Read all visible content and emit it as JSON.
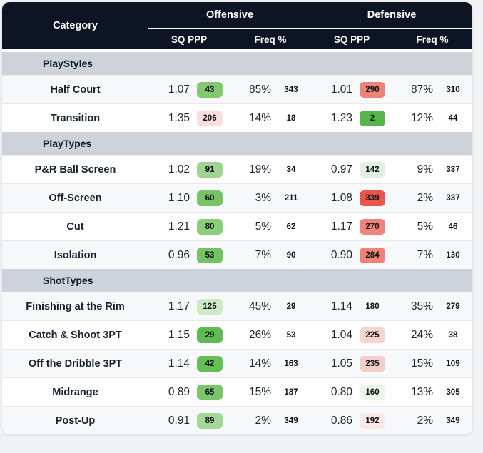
{
  "header": {
    "category": "Category",
    "groups": [
      {
        "label": "Offensive",
        "subcols": [
          "SQ PPP",
          "Freq %"
        ]
      },
      {
        "label": "Defensive",
        "subcols": [
          "SQ PPP",
          "Freq %"
        ]
      }
    ]
  },
  "colors": {
    "header_bg": "#0d1423",
    "section_bg": "#ced2da",
    "zebra_bg": "#f7f8f9",
    "rank_green_strong": "#55b44a",
    "rank_red_strong": "#e7574d"
  },
  "sections": [
    {
      "label": "PlayStyles",
      "rows": [
        {
          "category": "Half Court",
          "cells": [
            {
              "value": "1.07",
              "rank": "43",
              "badge": "#82c872"
            },
            {
              "value": "85%",
              "rank": "343",
              "badge": null
            },
            {
              "value": "1.01",
              "rank": "290",
              "badge": "#ee8478"
            },
            {
              "value": "87%",
              "rank": "310",
              "badge": null
            }
          ]
        },
        {
          "category": "Transition",
          "cells": [
            {
              "value": "1.35",
              "rank": "206",
              "badge": "#fadedd"
            },
            {
              "value": "14%",
              "rank": "18",
              "badge": null
            },
            {
              "value": "1.23",
              "rank": "2",
              "badge": "#55b44a"
            },
            {
              "value": "12%",
              "rank": "44",
              "badge": null
            }
          ]
        }
      ]
    },
    {
      "label": "PlayTypes",
      "rows": [
        {
          "category": "P&R Ball Screen",
          "cells": [
            {
              "value": "1.02",
              "rank": "91",
              "badge": "#9ed391"
            },
            {
              "value": "19%",
              "rank": "34",
              "badge": null
            },
            {
              "value": "0.97",
              "rank": "142",
              "badge": "#e2f1dd"
            },
            {
              "value": "9%",
              "rank": "337",
              "badge": null
            }
          ]
        },
        {
          "category": "Off-Screen",
          "cells": [
            {
              "value": "1.10",
              "rank": "60",
              "badge": "#76c466"
            },
            {
              "value": "3%",
              "rank": "211",
              "badge": null
            },
            {
              "value": "1.08",
              "rank": "339",
              "badge": "#e7574d"
            },
            {
              "value": "2%",
              "rank": "337",
              "badge": null
            }
          ]
        },
        {
          "category": "Cut",
          "cells": [
            {
              "value": "1.21",
              "rank": "80",
              "badge": "#8bcd7c"
            },
            {
              "value": "5%",
              "rank": "62",
              "badge": null
            },
            {
              "value": "1.17",
              "rank": "270",
              "badge": "#ef8579"
            },
            {
              "value": "5%",
              "rank": "46",
              "badge": null
            }
          ]
        },
        {
          "category": "Isolation",
          "cells": [
            {
              "value": "0.96",
              "rank": "53",
              "badge": "#74c363"
            },
            {
              "value": "7%",
              "rank": "90",
              "badge": null
            },
            {
              "value": "0.90",
              "rank": "284",
              "badge": "#ee8276"
            },
            {
              "value": "7%",
              "rank": "130",
              "badge": null
            }
          ]
        }
      ]
    },
    {
      "label": "ShotTypes",
      "rows": [
        {
          "category": "Finishing at the Rim",
          "cells": [
            {
              "value": "1.17",
              "rank": "125",
              "badge": "#cfe9c6"
            },
            {
              "value": "45%",
              "rank": "29",
              "badge": null
            },
            {
              "value": "1.14",
              "rank": "180",
              "badge": null
            },
            {
              "value": "35%",
              "rank": "279",
              "badge": null
            }
          ]
        },
        {
          "category": "Catch & Shoot 3PT",
          "cells": [
            {
              "value": "1.15",
              "rank": "29",
              "badge": "#5fbb53"
            },
            {
              "value": "26%",
              "rank": "53",
              "badge": null
            },
            {
              "value": "1.04",
              "rank": "225",
              "badge": "#f8d4d1"
            },
            {
              "value": "24%",
              "rank": "38",
              "badge": null
            }
          ]
        },
        {
          "category": "Off the Dribble 3PT",
          "cells": [
            {
              "value": "1.14",
              "rank": "42",
              "badge": "#65bf57"
            },
            {
              "value": "14%",
              "rank": "163",
              "badge": null
            },
            {
              "value": "1.05",
              "rank": "235",
              "badge": "#f5cdc9"
            },
            {
              "value": "15%",
              "rank": "109",
              "badge": null
            }
          ]
        },
        {
          "category": "Midrange",
          "cells": [
            {
              "value": "0.89",
              "rank": "65",
              "badge": "#7ac56a"
            },
            {
              "value": "15%",
              "rank": "187",
              "badge": null
            },
            {
              "value": "0.80",
              "rank": "160",
              "badge": "#ecf6e8"
            },
            {
              "value": "13%",
              "rank": "305",
              "badge": null
            }
          ]
        },
        {
          "category": "Post-Up",
          "cells": [
            {
              "value": "0.91",
              "rank": "89",
              "badge": "#a5d797"
            },
            {
              "value": "2%",
              "rank": "349",
              "badge": null
            },
            {
              "value": "0.86",
              "rank": "192",
              "badge": "#fae9e7"
            },
            {
              "value": "2%",
              "rank": "349",
              "badge": null
            }
          ]
        }
      ]
    }
  ]
}
